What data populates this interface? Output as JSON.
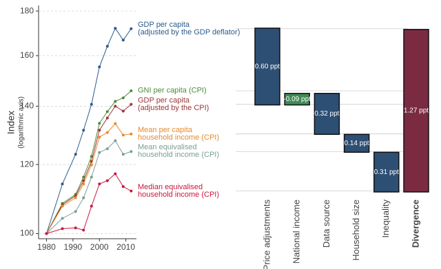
{
  "chart_data": [
    {
      "type": "line",
      "ylabel": "Index",
      "ylabel_note": "(logarithmic axis)",
      "x": [
        1980,
        1986,
        1991,
        1994,
        1997,
        2000,
        2003,
        2006,
        2009,
        2012
      ],
      "xlim": [
        1977,
        2014
      ],
      "xticks": [
        1980,
        1990,
        2000,
        2010
      ],
      "ylim": [
        99,
        182
      ],
      "yticks": [
        100,
        120,
        140,
        160,
        180
      ],
      "log_scale": true,
      "grid": true,
      "series": [
        {
          "name": "GDP per capita\n(adjusted by the GDP deflator)",
          "color": "#2b5a8a",
          "values": [
            100,
            114.0,
            123.3,
            131.4,
            140.7,
            155.3,
            164.0,
            172.0,
            166.7,
            171.8
          ]
        },
        {
          "name": "GNI per capita (CPI)",
          "color": "#4e8a3a",
          "values": [
            100,
            108.3,
            110.9,
            116.1,
            122.6,
            133.8,
            138.0,
            141.8,
            143.1,
            145.8
          ]
        },
        {
          "name": "GDP per capita\n(adjusted by the CPI)",
          "color": "#9c3636",
          "values": [
            100,
            107.9,
            110.5,
            115.0,
            121.0,
            131.4,
            135.7,
            140.0,
            138.2,
            140.7
          ]
        },
        {
          "name": "Mean per capita\nhousehold income (CPI)",
          "color": "#e8892a",
          "values": [
            100,
            107.5,
            109.9,
            114.0,
            119.9,
            129.0,
            130.6,
            133.7,
            129.7,
            130.1
          ]
        },
        {
          "name": "Mean equivalised\nhousehold income (CPI)",
          "color": "#7a9e95",
          "values": [
            100,
            104.1,
            106.0,
            109.9,
            116.1,
            123.9,
            125.1,
            127.8,
            123.3,
            124.2
          ]
        },
        {
          "name": "Median equivalised\nhousehold income (CPI)",
          "color": "#c8173f",
          "values": [
            100,
            101.3,
            101.5,
            100.9,
            107.5,
            114.0,
            115.0,
            117.1,
            113.2,
            111.9
          ]
        }
      ]
    },
    {
      "type": "waterfall",
      "categories": [
        "Price adjustments",
        "National income",
        "Data source",
        "Household size",
        "Inequality",
        "Divergence"
      ],
      "values": [
        0.6,
        -0.09,
        0.32,
        0.14,
        0.31,
        1.27
      ],
      "value_labels": [
        "0.60 ppt",
        "-0.09 ppt",
        "0.32 ppt",
        "0.14 ppt",
        "0.31 ppt",
        "1.27 ppt"
      ],
      "colors": [
        "#2d4f73",
        "#3f8a55",
        "#2d4f73",
        "#2d4f73",
        "#2d4f73",
        "#7a2b42"
      ]
    }
  ]
}
